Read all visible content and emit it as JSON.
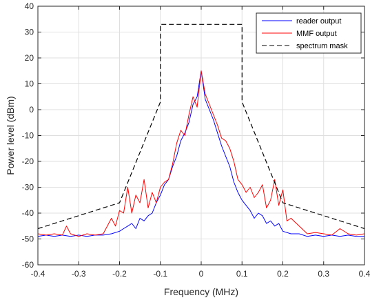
{
  "chart_data": {
    "type": "line",
    "xlabel": "Frequency (MHz)",
    "ylabel": "Power level (dBm)",
    "xlim": [
      -0.4,
      0.4
    ],
    "ylim": [
      -60,
      40
    ],
    "x_ticks": [
      -0.4,
      -0.3,
      -0.2,
      -0.1,
      0,
      0.1,
      0.2,
      0.3,
      0.4
    ],
    "x_tick_labels": [
      "-0.4",
      "-0.3",
      "-0.2",
      "-0.1",
      "0",
      "0.1",
      "0.2",
      "0.3",
      "0.4"
    ],
    "y_ticks": [
      -60,
      -50,
      -40,
      -30,
      -20,
      -10,
      0,
      10,
      20,
      30,
      40
    ],
    "y_tick_labels": [
      "-60",
      "-50",
      "-40",
      "-30",
      "-20",
      "-10",
      "0",
      "10",
      "20",
      "30",
      "40"
    ],
    "grid": true,
    "legend_position": "top-right",
    "series": [
      {
        "name": "reader output",
        "color": "#0000ff",
        "style": "solid",
        "x": [
          -0.4,
          -0.38,
          -0.36,
          -0.34,
          -0.32,
          -0.3,
          -0.28,
          -0.26,
          -0.24,
          -0.22,
          -0.2,
          -0.19,
          -0.18,
          -0.17,
          -0.16,
          -0.15,
          -0.14,
          -0.13,
          -0.12,
          -0.11,
          -0.1,
          -0.09,
          -0.08,
          -0.07,
          -0.06,
          -0.05,
          -0.04,
          -0.03,
          -0.02,
          -0.01,
          0,
          0.01,
          0.02,
          0.03,
          0.04,
          0.05,
          0.06,
          0.07,
          0.08,
          0.09,
          0.1,
          0.11,
          0.12,
          0.13,
          0.14,
          0.15,
          0.16,
          0.17,
          0.18,
          0.19,
          0.2,
          0.22,
          0.24,
          0.26,
          0.28,
          0.3,
          0.32,
          0.34,
          0.36,
          0.38,
          0.4
        ],
        "y": [
          -49,
          -48.5,
          -49,
          -48.5,
          -49,
          -48.5,
          -49,
          -48.5,
          -48.5,
          -48,
          -47,
          -46,
          -45,
          -44,
          -46,
          -42,
          -43,
          -41,
          -40,
          -36,
          -33,
          -29,
          -27,
          -22,
          -18,
          -12,
          -9,
          -5,
          2,
          5,
          15,
          4,
          0,
          -4,
          -9,
          -14,
          -18,
          -22,
          -28,
          -32,
          -35,
          -37,
          -39,
          -42,
          -40,
          -41,
          -44,
          -43,
          -45,
          -44,
          -47,
          -48,
          -48,
          -49,
          -48.5,
          -49,
          -48.5,
          -49,
          -48.5,
          -49,
          -49
        ]
      },
      {
        "name": "MMF output",
        "color": "#ff0000",
        "style": "solid",
        "x": [
          -0.4,
          -0.38,
          -0.36,
          -0.34,
          -0.33,
          -0.32,
          -0.3,
          -0.28,
          -0.26,
          -0.24,
          -0.22,
          -0.21,
          -0.2,
          -0.19,
          -0.18,
          -0.17,
          -0.16,
          -0.15,
          -0.14,
          -0.13,
          -0.12,
          -0.11,
          -0.1,
          -0.09,
          -0.08,
          -0.07,
          -0.06,
          -0.05,
          -0.04,
          -0.03,
          -0.02,
          -0.01,
          0,
          0.01,
          0.02,
          0.03,
          0.04,
          0.05,
          0.06,
          0.07,
          0.08,
          0.09,
          0.1,
          0.11,
          0.12,
          0.13,
          0.14,
          0.15,
          0.16,
          0.17,
          0.18,
          0.19,
          0.2,
          0.21,
          0.22,
          0.24,
          0.26,
          0.28,
          0.3,
          0.32,
          0.34,
          0.36,
          0.38,
          0.4
        ],
        "y": [
          -48,
          -48.5,
          -48,
          -48.5,
          -45,
          -48,
          -49,
          -48,
          -48.5,
          -48,
          -42,
          -45,
          -39,
          -40,
          -30,
          -40,
          -33,
          -36,
          -27,
          -38,
          -32,
          -36,
          -30,
          -28,
          -27,
          -21,
          -13,
          -8,
          -10,
          -2,
          5,
          1,
          15,
          6,
          2,
          -2,
          -6,
          -11,
          -12,
          -15,
          -20,
          -27,
          -29,
          -32,
          -30,
          -34,
          -32,
          -29,
          -38,
          -35,
          -27,
          -37,
          -31,
          -43,
          -42,
          -45,
          -48,
          -47.5,
          -48,
          -48.5,
          -46,
          -48,
          -48.5,
          -48
        ]
      },
      {
        "name": "spectrum mask",
        "color": "#000000",
        "style": "dashed",
        "x": [
          -0.4,
          -0.2,
          -0.1,
          -0.1,
          0.1,
          0.1,
          0.2,
          0.4
        ],
        "y": [
          -46,
          -36,
          3,
          33,
          33,
          3,
          -36,
          -46
        ]
      }
    ]
  }
}
